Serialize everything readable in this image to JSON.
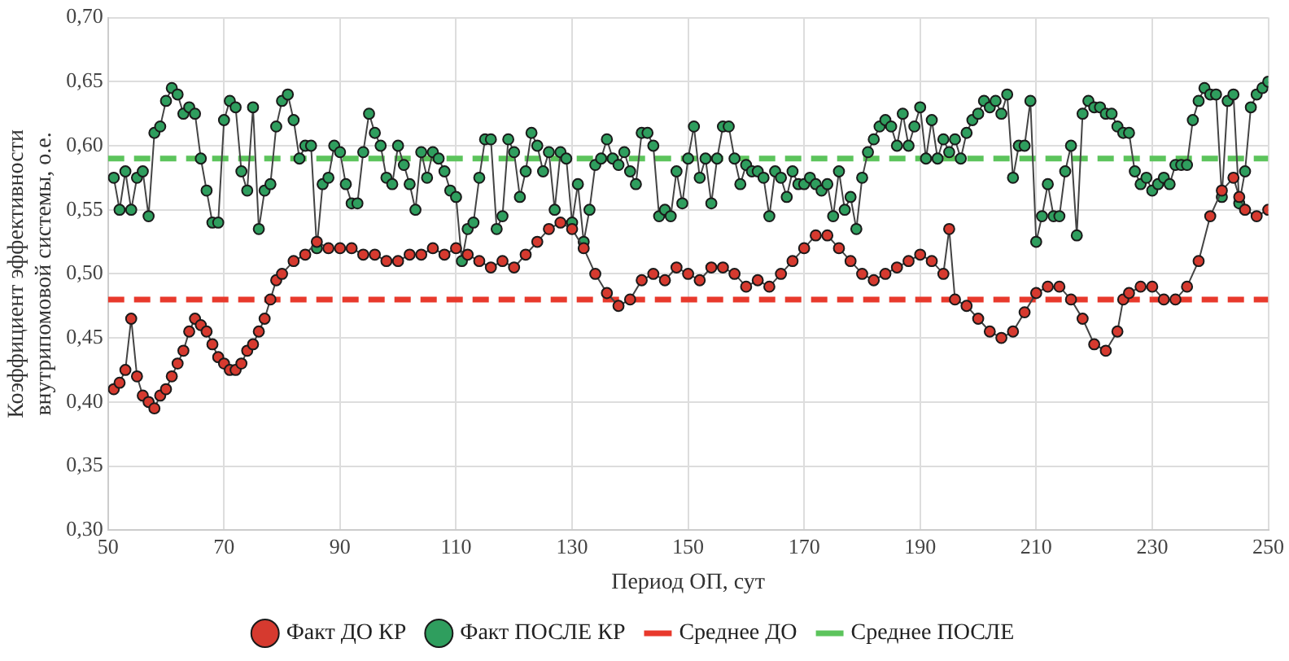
{
  "chart_data": {
    "type": "line",
    "xlabel": "Период ОП, сут",
    "ylabel": "Коэффициент эффективности внутрипомовой системы, о.е.",
    "xlim": [
      50,
      250
    ],
    "xticks": [
      50,
      70,
      90,
      110,
      130,
      150,
      170,
      190,
      210,
      230,
      250
    ],
    "ylim": [
      0.3,
      0.7
    ],
    "yticks": [
      {
        "value": 0.3,
        "label": "0,30"
      },
      {
        "value": 0.35,
        "label": "0,35"
      },
      {
        "value": 0.4,
        "label": "0,40"
      },
      {
        "value": 0.45,
        "label": "0,45"
      },
      {
        "value": 0.5,
        "label": "0,50"
      },
      {
        "value": 0.55,
        "label": "0,55"
      },
      {
        "value": 0.6,
        "label": "0,60"
      },
      {
        "value": 0.65,
        "label": "0,65"
      },
      {
        "value": 0.7,
        "label": "0,70"
      }
    ],
    "grid": true,
    "legend": "bottom",
    "marker": "circle",
    "line_style": "solid",
    "series": [
      {
        "name": "Факт ДО КР",
        "color": "#d63a2f",
        "x": [
          51,
          52,
          53,
          54,
          55,
          56,
          57,
          58,
          59,
          60,
          61,
          62,
          63,
          64,
          65,
          66,
          67,
          68,
          69,
          70,
          71,
          72,
          73,
          74,
          75,
          76,
          77,
          78,
          79,
          80,
          82,
          84,
          86,
          88,
          90,
          92,
          94,
          96,
          98,
          100,
          102,
          104,
          106,
          108,
          110,
          112,
          114,
          116,
          118,
          120,
          122,
          124,
          126,
          128,
          130,
          132,
          134,
          136,
          138,
          140,
          142,
          144,
          146,
          148,
          150,
          152,
          154,
          156,
          158,
          160,
          162,
          164,
          166,
          168,
          170,
          172,
          174,
          176,
          178,
          180,
          182,
          184,
          186,
          188,
          190,
          192,
          194,
          195,
          196,
          198,
          200,
          202,
          204,
          206,
          208,
          210,
          212,
          214,
          216,
          218,
          220,
          222,
          224,
          225,
          226,
          228,
          230,
          232,
          234,
          236,
          238,
          240,
          242,
          244,
          245,
          246,
          248,
          250
        ],
        "values": [
          0.41,
          0.415,
          0.425,
          0.465,
          0.42,
          0.405,
          0.4,
          0.395,
          0.405,
          0.41,
          0.42,
          0.43,
          0.44,
          0.455,
          0.465,
          0.46,
          0.455,
          0.445,
          0.435,
          0.43,
          0.425,
          0.425,
          0.43,
          0.44,
          0.445,
          0.455,
          0.465,
          0.48,
          0.495,
          0.5,
          0.51,
          0.515,
          0.525,
          0.52,
          0.52,
          0.52,
          0.515,
          0.515,
          0.51,
          0.51,
          0.515,
          0.515,
          0.52,
          0.515,
          0.52,
          0.515,
          0.51,
          0.505,
          0.51,
          0.505,
          0.515,
          0.525,
          0.535,
          0.54,
          0.535,
          0.52,
          0.5,
          0.485,
          0.475,
          0.48,
          0.495,
          0.5,
          0.495,
          0.505,
          0.5,
          0.495,
          0.505,
          0.505,
          0.5,
          0.49,
          0.495,
          0.49,
          0.5,
          0.51,
          0.52,
          0.53,
          0.53,
          0.52,
          0.51,
          0.5,
          0.495,
          0.5,
          0.505,
          0.51,
          0.515,
          0.51,
          0.5,
          0.535,
          0.48,
          0.475,
          0.465,
          0.455,
          0.45,
          0.455,
          0.47,
          0.485,
          0.49,
          0.49,
          0.48,
          0.465,
          0.445,
          0.44,
          0.455,
          0.48,
          0.485,
          0.49,
          0.49,
          0.48,
          0.48,
          0.49,
          0.51,
          0.545,
          0.565,
          0.575,
          0.56,
          0.55,
          0.545,
          0.55
        ]
      },
      {
        "name": "Факт ПОСЛЕ КР",
        "color": "#2f9e5e",
        "x": [
          51,
          52,
          53,
          54,
          55,
          56,
          57,
          58,
          59,
          60,
          61,
          62,
          63,
          64,
          65,
          66,
          67,
          68,
          69,
          70,
          71,
          72,
          73,
          74,
          75,
          76,
          77,
          78,
          79,
          80,
          81,
          82,
          83,
          84,
          85,
          86,
          87,
          88,
          89,
          90,
          91,
          92,
          93,
          94,
          95,
          96,
          97,
          98,
          99,
          100,
          101,
          102,
          103,
          104,
          105,
          106,
          107,
          108,
          109,
          110,
          111,
          112,
          113,
          114,
          115,
          116,
          117,
          118,
          119,
          120,
          121,
          122,
          123,
          124,
          125,
          126,
          127,
          128,
          129,
          130,
          131,
          132,
          133,
          134,
          135,
          136,
          137,
          138,
          139,
          140,
          141,
          142,
          143,
          144,
          145,
          146,
          147,
          148,
          149,
          150,
          151,
          152,
          153,
          154,
          155,
          156,
          157,
          158,
          159,
          160,
          161,
          162,
          163,
          164,
          165,
          166,
          167,
          168,
          169,
          170,
          171,
          172,
          173,
          174,
          175,
          176,
          177,
          178,
          179,
          180,
          181,
          182,
          183,
          184,
          185,
          186,
          187,
          188,
          189,
          190,
          191,
          192,
          193,
          194,
          195,
          196,
          197,
          198,
          199,
          200,
          201,
          202,
          203,
          204,
          205,
          206,
          207,
          208,
          209,
          210,
          211,
          212,
          213,
          214,
          215,
          216,
          217,
          218,
          219,
          220,
          221,
          222,
          223,
          224,
          225,
          226,
          227,
          228,
          229,
          230,
          231,
          232,
          233,
          234,
          235,
          236,
          237,
          238,
          239,
          240,
          241,
          242,
          243,
          244,
          245,
          246,
          247,
          248,
          249,
          250
        ],
        "values": [
          0.575,
          0.55,
          0.58,
          0.55,
          0.575,
          0.58,
          0.545,
          0.61,
          0.615,
          0.635,
          0.645,
          0.64,
          0.625,
          0.63,
          0.625,
          0.59,
          0.565,
          0.54,
          0.54,
          0.62,
          0.635,
          0.63,
          0.58,
          0.565,
          0.63,
          0.535,
          0.565,
          0.57,
          0.615,
          0.635,
          0.64,
          0.62,
          0.59,
          0.6,
          0.6,
          0.52,
          0.57,
          0.575,
          0.6,
          0.595,
          0.57,
          0.555,
          0.555,
          0.595,
          0.625,
          0.61,
          0.6,
          0.575,
          0.57,
          0.6,
          0.585,
          0.57,
          0.55,
          0.595,
          0.575,
          0.595,
          0.59,
          0.58,
          0.565,
          0.56,
          0.51,
          0.535,
          0.54,
          0.575,
          0.605,
          0.605,
          0.535,
          0.545,
          0.605,
          0.595,
          0.56,
          0.58,
          0.61,
          0.6,
          0.58,
          0.595,
          0.55,
          0.595,
          0.59,
          0.54,
          0.57,
          0.525,
          0.55,
          0.585,
          0.59,
          0.605,
          0.59,
          0.585,
          0.595,
          0.58,
          0.57,
          0.61,
          0.61,
          0.6,
          0.545,
          0.55,
          0.545,
          0.58,
          0.555,
          0.59,
          0.615,
          0.575,
          0.59,
          0.555,
          0.59,
          0.615,
          0.615,
          0.59,
          0.57,
          0.585,
          0.58,
          0.58,
          0.575,
          0.545,
          0.58,
          0.575,
          0.56,
          0.58,
          0.57,
          0.57,
          0.575,
          0.57,
          0.565,
          0.57,
          0.545,
          0.58,
          0.55,
          0.56,
          0.535,
          0.575,
          0.595,
          0.605,
          0.615,
          0.62,
          0.615,
          0.6,
          0.625,
          0.6,
          0.615,
          0.63,
          0.59,
          0.62,
          0.59,
          0.605,
          0.595,
          0.605,
          0.59,
          0.61,
          0.62,
          0.625,
          0.635,
          0.63,
          0.635,
          0.625,
          0.64,
          0.575,
          0.6,
          0.6,
          0.635,
          0.525,
          0.545,
          0.57,
          0.545,
          0.545,
          0.58,
          0.6,
          0.53,
          0.625,
          0.635,
          0.63,
          0.63,
          0.625,
          0.625,
          0.615,
          0.61,
          0.61,
          0.58,
          0.57,
          0.575,
          0.565,
          0.57,
          0.575,
          0.57,
          0.585,
          0.585,
          0.585,
          0.62,
          0.635,
          0.645,
          0.64,
          0.64,
          0.56,
          0.635,
          0.64,
          0.555,
          0.58,
          0.63,
          0.64,
          0.645,
          0.65
        ]
      }
    ],
    "ref_lines": [
      {
        "axis": "y",
        "value": 0.48,
        "label": "Среднее ДО",
        "color": "#e8392c",
        "line_style": "dashed"
      },
      {
        "axis": "y",
        "value": 0.59,
        "label": "Среднее ПОСЛЕ",
        "color": "#5cc45c",
        "line_style": "dashed"
      }
    ]
  }
}
